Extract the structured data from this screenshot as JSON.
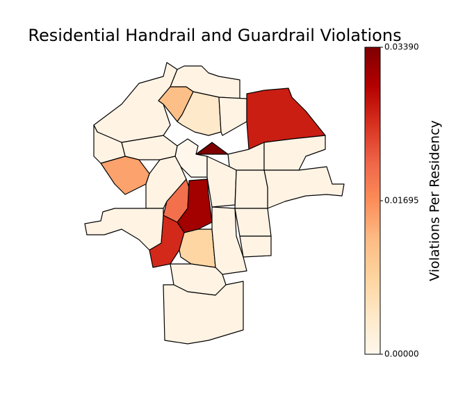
{
  "chart_data": {
    "type": "choropleth",
    "title": "Residential Handrail and Guardrail Violations",
    "colorbar_label": "Violations Per Residency",
    "colormap": "OrRd",
    "values": [
      0.001,
      0.001,
      0.012,
      0.004,
      0.001,
      0.027,
      0.0339,
      0.001,
      0.001,
      0.001,
      0.0,
      0.001,
      0.015,
      0.001,
      0.001,
      0.02,
      0.031,
      0.001,
      0.001,
      0.001,
      0.026,
      0.008,
      0.001,
      0.001,
      0.001,
      0.001,
      0.001
    ],
    "clim": [
      0,
      0.0339
    ],
    "cticks": [
      {
        "value": 0,
        "label": "0.00000"
      },
      {
        "value": 0.01695,
        "label": "0.01695"
      },
      {
        "value": 0.0339,
        "label": "0.03390"
      }
    ]
  }
}
